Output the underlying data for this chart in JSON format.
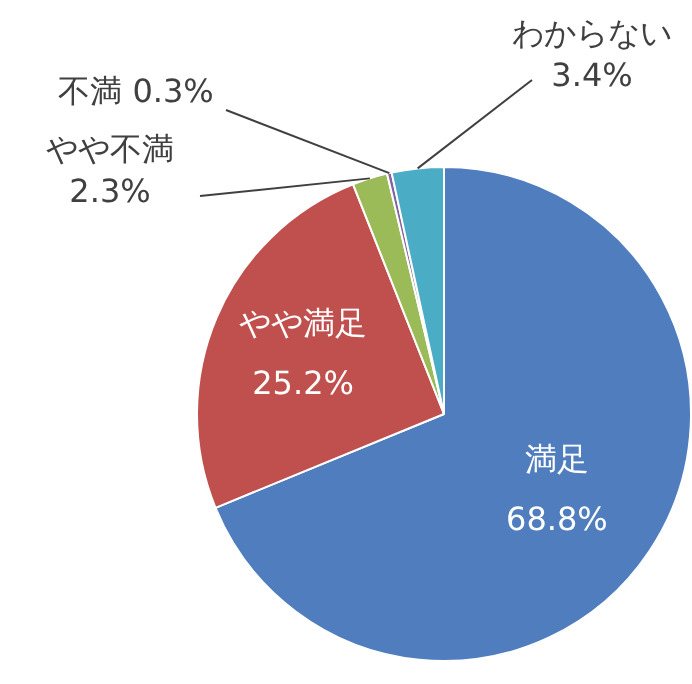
{
  "chart_data": {
    "type": "pie",
    "categories": [
      "満足",
      "やや満足",
      "やや不満",
      "不満",
      "わからない"
    ],
    "values": [
      68.8,
      25.2,
      2.3,
      0.3,
      3.4
    ],
    "colors": [
      "#4f7dbd",
      "#c0504d",
      "#9bbb59",
      "#8064a2",
      "#4bacc6"
    ],
    "value_labels": [
      "68.8%",
      "25.2%",
      "2.3%",
      "0.3%",
      "3.4%"
    ],
    "legend": false
  }
}
